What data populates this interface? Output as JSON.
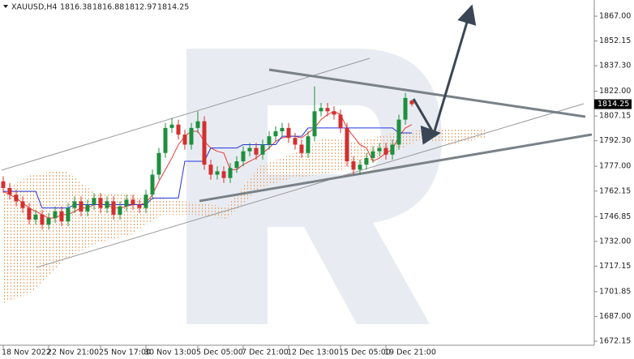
{
  "chart_data": {
    "type": "candlestick",
    "symbol": "XAUUSD,H4",
    "categories": [
      "18 Nov 2022",
      null,
      null,
      null,
      null,
      null,
      null,
      "22 Nov 21:00",
      null,
      null,
      null,
      null,
      null,
      null,
      null,
      "25 Nov 17:00",
      null,
      null,
      null,
      null,
      null,
      null,
      "30 Nov 13:00",
      null,
      null,
      null,
      null,
      null,
      null,
      null,
      "5 Dec 05:00",
      null,
      null,
      null,
      null,
      null,
      null,
      "7 Dec 21:00",
      null,
      null,
      null,
      null,
      null,
      null,
      "12 Dec 13:00",
      null,
      null,
      null,
      null,
      null,
      null,
      null,
      "15 Dec 05:00",
      null,
      null,
      null,
      null,
      null,
      null,
      "19 Dec 21:00",
      null,
      null,
      null,
      null
    ],
    "open": [
      1768,
      1764,
      1760,
      1756,
      1752,
      1745,
      1748,
      1742,
      1746,
      1750,
      1744,
      1752,
      1756,
      1750,
      1754,
      1758,
      1752,
      1756,
      1748,
      1753,
      1757,
      1754,
      1752,
      1760,
      1772,
      1785,
      1800,
      1802,
      1796,
      1790,
      1800,
      1804,
      1778,
      1772,
      1774,
      1770,
      1776,
      1780,
      1786,
      1788,
      1784,
      1790,
      1795,
      1798,
      1800,
      1794,
      1790,
      1785,
      1795,
      1810,
      1812,
      1810,
      1808,
      1800,
      1780,
      1775,
      1778,
      1782,
      1786,
      1788,
      1784,
      1790,
      1805,
      1816.38
    ],
    "high": [
      1771,
      1767,
      1763,
      1759,
      1755,
      1751,
      1751,
      1749,
      1753,
      1753,
      1755,
      1759,
      1759,
      1757,
      1761,
      1761,
      1759,
      1759,
      1756,
      1760,
      1760,
      1757,
      1763,
      1775,
      1788,
      1803,
      1806,
      1805,
      1799,
      1803,
      1810,
      1807,
      1781,
      1777,
      1777,
      1779,
      1783,
      1789,
      1791,
      1791,
      1793,
      1798,
      1801,
      1803,
      1803,
      1797,
      1793,
      1798,
      1825,
      1815,
      1815,
      1813,
      1811,
      1803,
      1783,
      1781,
      1785,
      1789,
      1791,
      1791,
      1793,
      1808,
      1821,
      1816.88
    ],
    "low": [
      1761,
      1757,
      1753,
      1749,
      1742,
      1742,
      1739,
      1739,
      1743,
      1741,
      1741,
      1749,
      1747,
      1747,
      1751,
      1749,
      1749,
      1745,
      1745,
      1750,
      1751,
      1749,
      1749,
      1757,
      1769,
      1782,
      1797,
      1793,
      1787,
      1787,
      1797,
      1775,
      1769,
      1769,
      1767,
      1767,
      1773,
      1777,
      1783,
      1781,
      1781,
      1787,
      1792,
      1795,
      1791,
      1787,
      1782,
      1782,
      1792,
      1807,
      1807,
      1805,
      1797,
      1777,
      1772,
      1772,
      1775,
      1779,
      1783,
      1781,
      1781,
      1787,
      1802,
      1812.97
    ],
    "close": [
      1764,
      1760,
      1756,
      1752,
      1745,
      1748,
      1742,
      1746,
      1750,
      1744,
      1752,
      1756,
      1750,
      1754,
      1758,
      1752,
      1756,
      1748,
      1753,
      1757,
      1754,
      1752,
      1760,
      1772,
      1785,
      1800,
      1802,
      1796,
      1790,
      1800,
      1804,
      1778,
      1772,
      1774,
      1770,
      1776,
      1780,
      1786,
      1788,
      1784,
      1790,
      1795,
      1798,
      1800,
      1794,
      1790,
      1785,
      1795,
      1810,
      1812,
      1810,
      1808,
      1800,
      1780,
      1775,
      1778,
      1782,
      1786,
      1788,
      1784,
      1790,
      1805,
      1818,
      1814.25
    ],
    "up_color": "#1e8f3e",
    "down_color": "#d32f2f",
    "lines": [
      {
        "color": "#e53935",
        "values": [
          1762,
          1760,
          1758,
          1755,
          1752,
          1750,
          1748,
          1746,
          1746,
          1748,
          1748,
          1750,
          1752,
          1752,
          1754,
          1754,
          1754,
          1752,
          1752,
          1753,
          1754,
          1754,
          1755,
          1760,
          1768,
          1775,
          1782,
          1790,
          1795,
          1798,
          1798,
          1792,
          1788,
          1786,
          1785,
          1775,
          1775,
          1778,
          1780,
          1782,
          1785,
          1788,
          1792,
          1794,
          1795,
          1795,
          1794,
          1797,
          1800,
          1805,
          1808,
          1810,
          1808,
          1800,
          1795,
          1790,
          1788,
          1780,
          1782,
          1785,
          1787,
          1795,
          1800,
          1802
        ]
      },
      {
        "color": "#2233dd",
        "values": [
          1762,
          1762,
          1762,
          1762,
          1762,
          1762,
          1752,
          1752,
          1752,
          1752,
          1752,
          1754,
          1754,
          1754,
          1754,
          1754,
          1754,
          1754,
          1754,
          1754,
          1754,
          1754,
          1754,
          1758,
          1758,
          1758,
          1758,
          1758,
          1780,
          1780,
          1780,
          1780,
          1788,
          1788,
          1788,
          1788,
          1788,
          1790,
          1790,
          1790,
          1790,
          1790,
          1790,
          1795,
          1795,
          1795,
          1795,
          1800,
          1800,
          1800,
          1800,
          1800,
          1800,
          1800,
          1800,
          1800,
          1800,
          1800,
          1800,
          1800,
          1800,
          1797,
          1797,
          1797
        ]
      }
    ],
    "ylim": [
      1669.72,
      1876.72
    ],
    "yticks": [
      {
        "value": 1867,
        "label": "1867.00"
      },
      {
        "value": 1852.15,
        "label": "1852.15"
      },
      {
        "value": 1837.3,
        "label": "1837.30"
      },
      {
        "value": 1822,
        "label": "1822.00"
      },
      {
        "value": 1807.15,
        "label": "1807.15"
      },
      {
        "value": 1792.3,
        "label": "1792.30"
      },
      {
        "value": 1777,
        "label": "1777.00"
      },
      {
        "value": 1762.15,
        "label": "1762.15"
      },
      {
        "value": 1746.85,
        "label": "1746.85"
      },
      {
        "value": 1732,
        "label": "1732.00"
      },
      {
        "value": 1717.15,
        "label": "1717.15"
      },
      {
        "value": 1701.85,
        "label": "1701.85"
      },
      {
        "value": 1687,
        "label": "1687.00"
      },
      {
        "value": 1672.15,
        "label": "1672.15"
      }
    ]
  }
}
